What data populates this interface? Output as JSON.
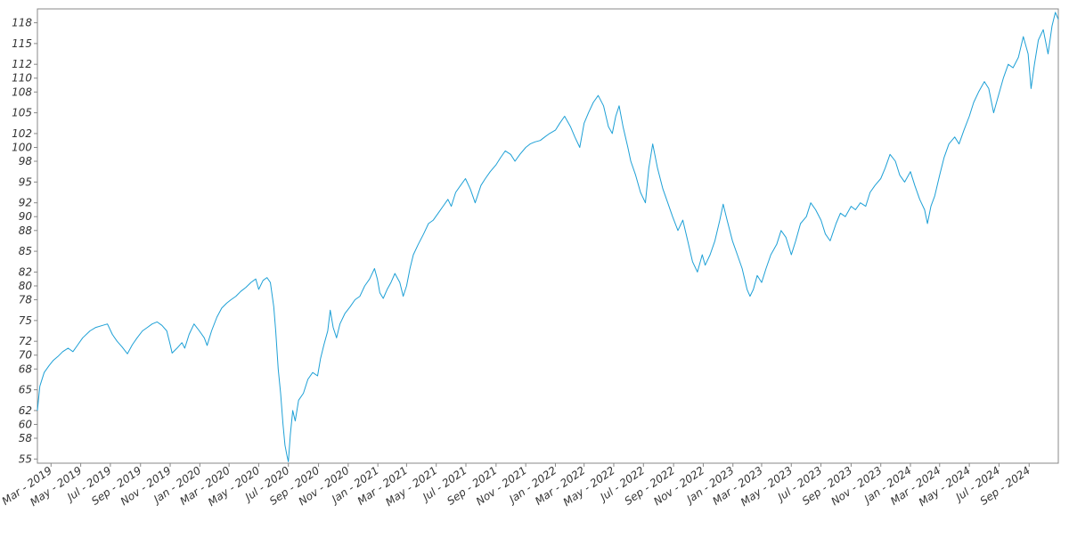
{
  "chart_data": {
    "type": "line",
    "title": "",
    "xlabel": "",
    "ylabel": "",
    "grid": false,
    "legend": "none",
    "line_color": "#1ea0d6",
    "x_range": [
      "2019-02-01",
      "2024-10-31"
    ],
    "ylim": [
      54.4,
      120.0
    ],
    "y_ticks": [
      55,
      58,
      60,
      62,
      65,
      68,
      70,
      72,
      75,
      78,
      80,
      82,
      85,
      88,
      90,
      92,
      95,
      98,
      100,
      102,
      105,
      108,
      110,
      112,
      115,
      118
    ],
    "x_ticks": [
      {
        "date": "2019-03-01",
        "label": "Mar - 2019"
      },
      {
        "date": "2019-05-01",
        "label": "May - 2019"
      },
      {
        "date": "2019-07-01",
        "label": "Jul - 2019"
      },
      {
        "date": "2019-09-01",
        "label": "Sep - 2019"
      },
      {
        "date": "2019-11-01",
        "label": "Nov - 2019"
      },
      {
        "date": "2020-01-01",
        "label": "Jan - 2020"
      },
      {
        "date": "2020-03-01",
        "label": "Mar - 2020"
      },
      {
        "date": "2020-05-01",
        "label": "May - 2020"
      },
      {
        "date": "2020-07-01",
        "label": "Jul - 2020"
      },
      {
        "date": "2020-09-01",
        "label": "Sep - 2020"
      },
      {
        "date": "2020-11-01",
        "label": "Nov - 2020"
      },
      {
        "date": "2021-01-01",
        "label": "Jan - 2021"
      },
      {
        "date": "2021-03-01",
        "label": "Mar - 2021"
      },
      {
        "date": "2021-05-01",
        "label": "May - 2021"
      },
      {
        "date": "2021-07-01",
        "label": "Jul - 2021"
      },
      {
        "date": "2021-09-01",
        "label": "Sep - 2021"
      },
      {
        "date": "2021-11-01",
        "label": "Nov - 2021"
      },
      {
        "date": "2022-01-01",
        "label": "Jan - 2022"
      },
      {
        "date": "2022-03-01",
        "label": "Mar - 2022"
      },
      {
        "date": "2022-05-01",
        "label": "May - 2022"
      },
      {
        "date": "2022-07-01",
        "label": "Jul - 2022"
      },
      {
        "date": "2022-09-01",
        "label": "Sep - 2022"
      },
      {
        "date": "2022-11-01",
        "label": "Nov - 2022"
      },
      {
        "date": "2023-01-01",
        "label": "Jan - 2023"
      },
      {
        "date": "2023-03-01",
        "label": "Mar - 2023"
      },
      {
        "date": "2023-05-01",
        "label": "May - 2023"
      },
      {
        "date": "2023-07-01",
        "label": "Jul - 2023"
      },
      {
        "date": "2023-09-01",
        "label": "Sep - 2023"
      },
      {
        "date": "2023-11-01",
        "label": "Nov - 2023"
      },
      {
        "date": "2024-01-01",
        "label": "Jan - 2024"
      },
      {
        "date": "2024-03-01",
        "label": "Mar - 2024"
      },
      {
        "date": "2024-05-01",
        "label": "May - 2024"
      },
      {
        "date": "2024-07-01",
        "label": "Jul - 2024"
      },
      {
        "date": "2024-09-01",
        "label": "Sep - 2024"
      }
    ],
    "series": [
      {
        "points": [
          [
            "2019-02-01",
            62.0
          ],
          [
            "2019-02-06",
            65.5
          ],
          [
            "2019-02-15",
            67.5
          ],
          [
            "2019-02-25",
            68.5
          ],
          [
            "2019-03-05",
            69.2
          ],
          [
            "2019-03-15",
            69.8
          ],
          [
            "2019-03-25",
            70.5
          ],
          [
            "2019-04-05",
            71.0
          ],
          [
            "2019-04-15",
            70.5
          ],
          [
            "2019-04-25",
            71.5
          ],
          [
            "2019-05-05",
            72.5
          ],
          [
            "2019-05-20",
            73.5
          ],
          [
            "2019-06-01",
            74.0
          ],
          [
            "2019-06-15",
            74.3
          ],
          [
            "2019-06-25",
            74.5
          ],
          [
            "2019-07-05",
            73.0
          ],
          [
            "2019-07-15",
            72.0
          ],
          [
            "2019-07-25",
            71.2
          ],
          [
            "2019-08-05",
            70.2
          ],
          [
            "2019-08-15",
            71.5
          ],
          [
            "2019-08-25",
            72.5
          ],
          [
            "2019-09-05",
            73.5
          ],
          [
            "2019-09-15",
            74.0
          ],
          [
            "2019-09-25",
            74.5
          ],
          [
            "2019-10-05",
            74.8
          ],
          [
            "2019-10-15",
            74.3
          ],
          [
            "2019-10-25",
            73.5
          ],
          [
            "2019-11-01",
            71.5
          ],
          [
            "2019-11-05",
            70.3
          ],
          [
            "2019-11-15",
            71.0
          ],
          [
            "2019-11-25",
            71.8
          ],
          [
            "2019-12-01",
            71.0
          ],
          [
            "2019-12-10",
            73.0
          ],
          [
            "2019-12-20",
            74.5
          ],
          [
            "2019-12-31",
            73.5
          ],
          [
            "2020-01-10",
            72.5
          ],
          [
            "2020-01-16",
            71.4
          ],
          [
            "2020-01-25",
            73.5
          ],
          [
            "2020-02-05",
            75.5
          ],
          [
            "2020-02-15",
            76.8
          ],
          [
            "2020-02-25",
            77.5
          ],
          [
            "2020-03-05",
            78.0
          ],
          [
            "2020-03-15",
            78.5
          ],
          [
            "2020-03-25",
            79.2
          ],
          [
            "2020-04-05",
            79.8
          ],
          [
            "2020-04-15",
            80.5
          ],
          [
            "2020-04-25",
            81.0
          ],
          [
            "2020-05-01",
            79.5
          ],
          [
            "2020-05-10",
            80.8
          ],
          [
            "2020-05-18",
            81.2
          ],
          [
            "2020-05-25",
            80.5
          ],
          [
            "2020-06-01",
            77.0
          ],
          [
            "2020-06-05",
            73.5
          ],
          [
            "2020-06-10",
            68.0
          ],
          [
            "2020-06-15",
            64.5
          ],
          [
            "2020-06-20",
            60.0
          ],
          [
            "2020-06-24",
            57.0
          ],
          [
            "2020-06-28",
            55.5
          ],
          [
            "2020-07-01",
            54.6
          ],
          [
            "2020-07-05",
            58.5
          ],
          [
            "2020-07-10",
            62.0
          ],
          [
            "2020-07-15",
            60.5
          ],
          [
            "2020-07-22",
            63.5
          ],
          [
            "2020-08-01",
            64.5
          ],
          [
            "2020-08-10",
            66.5
          ],
          [
            "2020-08-20",
            67.5
          ],
          [
            "2020-08-30",
            67.0
          ],
          [
            "2020-09-05",
            69.5
          ],
          [
            "2020-09-12",
            71.5
          ],
          [
            "2020-09-20",
            73.5
          ],
          [
            "2020-09-25",
            76.5
          ],
          [
            "2020-10-01",
            74.0
          ],
          [
            "2020-10-08",
            72.5
          ],
          [
            "2020-10-15",
            74.5
          ],
          [
            "2020-10-25",
            76.0
          ],
          [
            "2020-11-05",
            77.0
          ],
          [
            "2020-11-15",
            78.0
          ],
          [
            "2020-11-25",
            78.5
          ],
          [
            "2020-12-05",
            80.0
          ],
          [
            "2020-12-15",
            81.0
          ],
          [
            "2020-12-25",
            82.5
          ],
          [
            "2020-12-31",
            81.0
          ],
          [
            "2021-01-05",
            79.0
          ],
          [
            "2021-01-12",
            78.2
          ],
          [
            "2021-01-20",
            79.5
          ],
          [
            "2021-01-28",
            80.5
          ],
          [
            "2021-02-05",
            81.8
          ],
          [
            "2021-02-15",
            80.5
          ],
          [
            "2021-02-22",
            78.5
          ],
          [
            "2021-03-01",
            80.0
          ],
          [
            "2021-03-08",
            82.5
          ],
          [
            "2021-03-15",
            84.5
          ],
          [
            "2021-03-25",
            86.0
          ],
          [
            "2021-04-05",
            87.5
          ],
          [
            "2021-04-15",
            89.0
          ],
          [
            "2021-04-25",
            89.5
          ],
          [
            "2021-05-05",
            90.5
          ],
          [
            "2021-05-15",
            91.5
          ],
          [
            "2021-05-25",
            92.5
          ],
          [
            "2021-06-01",
            91.5
          ],
          [
            "2021-06-10",
            93.5
          ],
          [
            "2021-06-20",
            94.5
          ],
          [
            "2021-06-30",
            95.5
          ],
          [
            "2021-07-10",
            94.0
          ],
          [
            "2021-07-20",
            92.0
          ],
          [
            "2021-08-01",
            94.5
          ],
          [
            "2021-08-10",
            95.5
          ],
          [
            "2021-08-20",
            96.5
          ],
          [
            "2021-09-01",
            97.5
          ],
          [
            "2021-09-10",
            98.5
          ],
          [
            "2021-09-20",
            99.5
          ],
          [
            "2021-10-01",
            99.0
          ],
          [
            "2021-10-10",
            98.0
          ],
          [
            "2021-10-20",
            99.0
          ],
          [
            "2021-11-01",
            100.0
          ],
          [
            "2021-11-10",
            100.5
          ],
          [
            "2021-11-20",
            100.8
          ],
          [
            "2021-12-01",
            101.0
          ],
          [
            "2021-12-10",
            101.5
          ],
          [
            "2021-12-20",
            102.0
          ],
          [
            "2022-01-01",
            102.5
          ],
          [
            "2022-01-10",
            103.5
          ],
          [
            "2022-01-20",
            104.5
          ],
          [
            "2022-02-01",
            103.0
          ],
          [
            "2022-02-10",
            101.5
          ],
          [
            "2022-02-20",
            100.0
          ],
          [
            "2022-03-01",
            103.5
          ],
          [
            "2022-03-10",
            105.0
          ],
          [
            "2022-03-20",
            106.5
          ],
          [
            "2022-03-30",
            107.5
          ],
          [
            "2022-04-10",
            106.0
          ],
          [
            "2022-04-20",
            103.0
          ],
          [
            "2022-04-28",
            102.0
          ],
          [
            "2022-05-05",
            104.5
          ],
          [
            "2022-05-12",
            106.0
          ],
          [
            "2022-05-20",
            103.0
          ],
          [
            "2022-05-30",
            100.0
          ],
          [
            "2022-06-05",
            98.0
          ],
          [
            "2022-06-15",
            96.0
          ],
          [
            "2022-06-25",
            93.5
          ],
          [
            "2022-07-05",
            92.0
          ],
          [
            "2022-07-12",
            97.0
          ],
          [
            "2022-07-20",
            100.5
          ],
          [
            "2022-07-30",
            97.0
          ],
          [
            "2022-08-10",
            94.0
          ],
          [
            "2022-08-20",
            92.0
          ],
          [
            "2022-08-30",
            90.0
          ],
          [
            "2022-09-10",
            88.0
          ],
          [
            "2022-09-20",
            89.5
          ],
          [
            "2022-09-30",
            86.5
          ],
          [
            "2022-10-10",
            83.5
          ],
          [
            "2022-10-20",
            82.0
          ],
          [
            "2022-10-30",
            84.5
          ],
          [
            "2022-11-05",
            83.0
          ],
          [
            "2022-11-15",
            84.5
          ],
          [
            "2022-11-25",
            86.5
          ],
          [
            "2022-12-05",
            89.5
          ],
          [
            "2022-12-12",
            91.8
          ],
          [
            "2022-12-20",
            89.5
          ],
          [
            "2022-12-31",
            86.5
          ],
          [
            "2023-01-10",
            84.5
          ],
          [
            "2023-01-20",
            82.5
          ],
          [
            "2023-01-30",
            79.5
          ],
          [
            "2023-02-05",
            78.5
          ],
          [
            "2023-02-12",
            79.5
          ],
          [
            "2023-02-20",
            81.5
          ],
          [
            "2023-03-01",
            80.5
          ],
          [
            "2023-03-10",
            82.5
          ],
          [
            "2023-03-20",
            84.5
          ],
          [
            "2023-04-01",
            86.0
          ],
          [
            "2023-04-10",
            88.0
          ],
          [
            "2023-04-20",
            87.0
          ],
          [
            "2023-05-01",
            84.5
          ],
          [
            "2023-05-10",
            86.5
          ],
          [
            "2023-05-20",
            89.0
          ],
          [
            "2023-06-01",
            90.0
          ],
          [
            "2023-06-10",
            92.0
          ],
          [
            "2023-06-20",
            91.0
          ],
          [
            "2023-07-01",
            89.5
          ],
          [
            "2023-07-10",
            87.5
          ],
          [
            "2023-07-20",
            86.5
          ],
          [
            "2023-08-01",
            89.0
          ],
          [
            "2023-08-10",
            90.5
          ],
          [
            "2023-08-20",
            90.0
          ],
          [
            "2023-09-01",
            91.5
          ],
          [
            "2023-09-10",
            91.0
          ],
          [
            "2023-09-20",
            92.0
          ],
          [
            "2023-10-01",
            91.5
          ],
          [
            "2023-10-10",
            93.5
          ],
          [
            "2023-10-20",
            94.5
          ],
          [
            "2023-11-01",
            95.5
          ],
          [
            "2023-11-10",
            97.0
          ],
          [
            "2023-11-20",
            99.0
          ],
          [
            "2023-12-01",
            98.0
          ],
          [
            "2023-12-10",
            96.0
          ],
          [
            "2023-12-20",
            95.0
          ],
          [
            "2024-01-01",
            96.5
          ],
          [
            "2024-01-10",
            94.5
          ],
          [
            "2024-01-20",
            92.5
          ],
          [
            "2024-01-30",
            91.0
          ],
          [
            "2024-02-05",
            89.0
          ],
          [
            "2024-02-12",
            91.5
          ],
          [
            "2024-02-20",
            93.0
          ],
          [
            "2024-03-01",
            96.0
          ],
          [
            "2024-03-10",
            98.5
          ],
          [
            "2024-03-20",
            100.5
          ],
          [
            "2024-04-01",
            101.5
          ],
          [
            "2024-04-10",
            100.5
          ],
          [
            "2024-04-20",
            102.5
          ],
          [
            "2024-05-01",
            104.5
          ],
          [
            "2024-05-10",
            106.5
          ],
          [
            "2024-05-20",
            108.0
          ],
          [
            "2024-06-01",
            109.5
          ],
          [
            "2024-06-10",
            108.5
          ],
          [
            "2024-06-20",
            105.0
          ],
          [
            "2024-06-30",
            107.5
          ],
          [
            "2024-07-10",
            110.0
          ],
          [
            "2024-07-20",
            112.0
          ],
          [
            "2024-07-30",
            111.5
          ],
          [
            "2024-08-10",
            113.0
          ],
          [
            "2024-08-20",
            116.0
          ],
          [
            "2024-08-30",
            113.5
          ],
          [
            "2024-09-05",
            108.5
          ],
          [
            "2024-09-12",
            112.0
          ],
          [
            "2024-09-20",
            115.5
          ],
          [
            "2024-09-30",
            117.0
          ],
          [
            "2024-10-10",
            113.5
          ],
          [
            "2024-10-18",
            117.5
          ],
          [
            "2024-10-25",
            119.5
          ],
          [
            "2024-10-31",
            118.5
          ]
        ]
      }
    ]
  }
}
